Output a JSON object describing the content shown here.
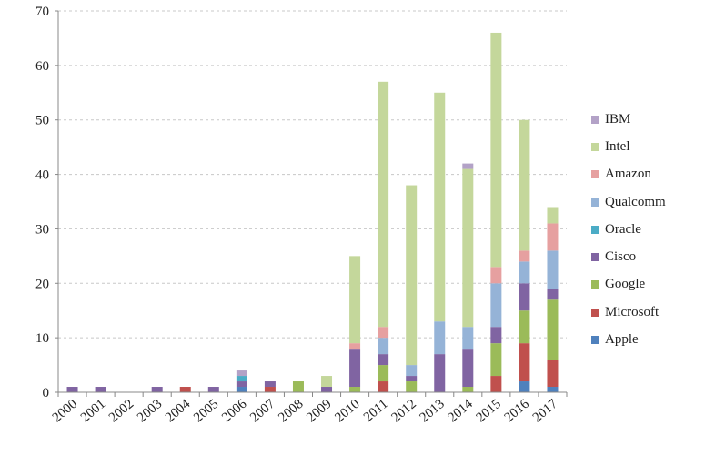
{
  "chart_data": {
    "type": "bar",
    "stacked": true,
    "categories": [
      "2000",
      "2001",
      "2002",
      "2003",
      "2004",
      "2005",
      "2006",
      "2007",
      "2008",
      "2009",
      "2010",
      "2011",
      "2012",
      "2013",
      "2014",
      "2015",
      "2016",
      "2017"
    ],
    "ylim": [
      0,
      70
    ],
    "yticks": [
      0,
      10,
      20,
      30,
      40,
      50,
      60,
      70
    ],
    "grid": true,
    "legend_position": "right",
    "series": [
      {
        "name": "Apple",
        "color": "#4f81bd",
        "values": [
          0,
          0,
          0,
          0,
          0,
          0,
          1,
          0,
          0,
          0,
          0,
          0,
          0,
          0,
          0,
          0,
          2,
          1
        ]
      },
      {
        "name": "Microsoft",
        "color": "#c0504d",
        "values": [
          0,
          0,
          0,
          0,
          1,
          0,
          0,
          1,
          0,
          0,
          0,
          2,
          0,
          0,
          0,
          3,
          7,
          5
        ]
      },
      {
        "name": "Google",
        "color": "#9bbb59",
        "values": [
          0,
          0,
          0,
          0,
          0,
          0,
          0,
          0,
          2,
          0,
          1,
          3,
          2,
          0,
          1,
          6,
          6,
          11
        ]
      },
      {
        "name": "Cisco",
        "color": "#8064a2",
        "values": [
          1,
          1,
          0,
          1,
          0,
          1,
          1,
          1,
          0,
          1,
          7,
          2,
          1,
          7,
          7,
          3,
          5,
          2
        ]
      },
      {
        "name": "Oracle",
        "color": "#4bacc6",
        "values": [
          0,
          0,
          0,
          0,
          0,
          0,
          1,
          0,
          0,
          0,
          0,
          0,
          0,
          0,
          0,
          0,
          0,
          0
        ]
      },
      {
        "name": "Qualcomm",
        "color": "#95b3d7",
        "values": [
          0,
          0,
          0,
          0,
          0,
          0,
          0,
          0,
          0,
          0,
          0,
          3,
          2,
          6,
          4,
          8,
          4,
          7
        ]
      },
      {
        "name": "Amazon",
        "color": "#e6a0a0",
        "values": [
          0,
          0,
          0,
          0,
          0,
          0,
          0,
          0,
          0,
          0,
          1,
          2,
          0,
          0,
          0,
          3,
          2,
          5
        ]
      },
      {
        "name": "Intel",
        "color": "#c4d79b",
        "values": [
          0,
          0,
          0,
          0,
          0,
          0,
          0,
          0,
          0,
          2,
          16,
          45,
          33,
          42,
          29,
          43,
          24,
          3
        ]
      },
      {
        "name": "IBM",
        "color": "#b3a2c7",
        "values": [
          0,
          0,
          0,
          0,
          0,
          0,
          1,
          0,
          0,
          0,
          0,
          0,
          0,
          0,
          1,
          0,
          0,
          0
        ]
      }
    ]
  }
}
